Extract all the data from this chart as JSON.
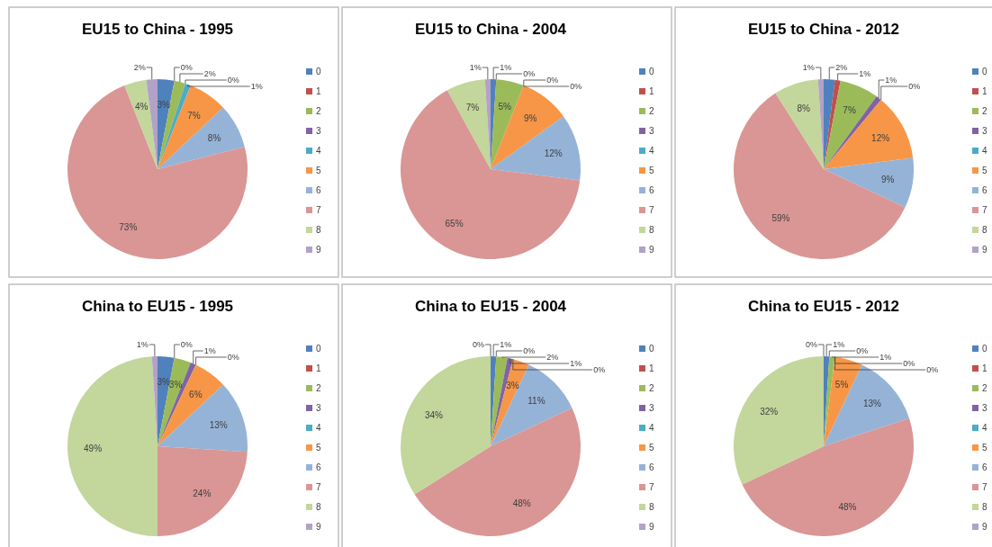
{
  "chart_data": [
    {
      "type": "pie",
      "title": "EU15 to China - 1995",
      "categories": [
        "0",
        "1",
        "2",
        "3",
        "4",
        "5",
        "6",
        "7",
        "8",
        "9"
      ],
      "values": [
        3,
        0,
        2,
        0,
        1,
        7,
        8,
        73,
        4,
        2
      ],
      "value_labels": [
        "3%",
        "0%",
        "2%",
        "0%",
        "1%",
        "7%",
        "8%",
        "73%",
        "4%",
        "2%"
      ],
      "colors": [
        "#4f81bd",
        "#c0504d",
        "#9bbb59",
        "#8064a2",
        "#4bacc6",
        "#f79646",
        "#95b3d7",
        "#d99694",
        "#c3d69b",
        "#b3a2c7"
      ],
      "legend": "right"
    },
    {
      "type": "pie",
      "title": "EU15 to China - 2004",
      "categories": [
        "0",
        "1",
        "2",
        "3",
        "4",
        "5",
        "6",
        "7",
        "8",
        "9"
      ],
      "values": [
        1,
        0,
        5,
        0,
        0,
        9,
        12,
        65,
        7,
        1
      ],
      "value_labels": [
        "1%",
        "0%",
        "5%",
        "0%",
        "0%",
        "9%",
        "12%",
        "65%",
        "7%",
        "1%"
      ],
      "colors": [
        "#4f81bd",
        "#c0504d",
        "#9bbb59",
        "#8064a2",
        "#4bacc6",
        "#f79646",
        "#95b3d7",
        "#d99694",
        "#c3d69b",
        "#b3a2c7"
      ],
      "legend": "right"
    },
    {
      "type": "pie",
      "title": "EU15 to China - 2012",
      "categories": [
        "0",
        "1",
        "2",
        "3",
        "4",
        "5",
        "6",
        "7",
        "8",
        "9"
      ],
      "values": [
        2,
        1,
        7,
        1,
        0,
        12,
        9,
        59,
        8,
        1
      ],
      "value_labels": [
        "2%",
        "1%",
        "7%",
        "1%",
        "0%",
        "12%",
        "9%",
        "59%",
        "8%",
        "1%"
      ],
      "colors": [
        "#4f81bd",
        "#c0504d",
        "#9bbb59",
        "#8064a2",
        "#4bacc6",
        "#f79646",
        "#95b3d7",
        "#d99694",
        "#c3d69b",
        "#b3a2c7"
      ],
      "legend": "right"
    },
    {
      "type": "pie",
      "title": "China to EU15 - 1995",
      "categories": [
        "0",
        "1",
        "2",
        "3",
        "4",
        "5",
        "6",
        "7",
        "8",
        "9"
      ],
      "values": [
        3,
        0,
        3,
        1,
        0,
        6,
        13,
        24,
        49,
        1
      ],
      "value_labels": [
        "3%",
        "0%",
        "3%",
        "1%",
        "0%",
        "6%",
        "13%",
        "24%",
        "49%",
        "1%"
      ],
      "colors": [
        "#4f81bd",
        "#c0504d",
        "#9bbb59",
        "#8064a2",
        "#4bacc6",
        "#f79646",
        "#95b3d7",
        "#d99694",
        "#c3d69b",
        "#b3a2c7"
      ],
      "legend": "right"
    },
    {
      "type": "pie",
      "title": "China to EU15 - 2004",
      "categories": [
        "0",
        "1",
        "2",
        "3",
        "4",
        "5",
        "6",
        "7",
        "8",
        "9"
      ],
      "values": [
        1,
        0,
        2,
        1,
        0,
        3,
        11,
        48,
        34,
        0
      ],
      "value_labels": [
        "1%",
        "0%",
        "2%",
        "1%",
        "0%",
        "3%",
        "11%",
        "48%",
        "34%",
        "0%"
      ],
      "colors": [
        "#4f81bd",
        "#c0504d",
        "#9bbb59",
        "#8064a2",
        "#4bacc6",
        "#f79646",
        "#95b3d7",
        "#d99694",
        "#c3d69b",
        "#b3a2c7"
      ],
      "legend": "right"
    },
    {
      "type": "pie",
      "title": "China to EU15 - 2012",
      "categories": [
        "0",
        "1",
        "2",
        "3",
        "4",
        "5",
        "6",
        "7",
        "8",
        "9"
      ],
      "values": [
        1,
        0,
        1,
        0,
        0,
        5,
        13,
        48,
        32,
        0
      ],
      "value_labels": [
        "1%",
        "0%",
        "1%",
        "0%",
        "0%",
        "5%",
        "13%",
        "48%",
        "32%",
        "0%"
      ],
      "colors": [
        "#4f81bd",
        "#c0504d",
        "#9bbb59",
        "#8064a2",
        "#4bacc6",
        "#f79646",
        "#95b3d7",
        "#d99694",
        "#c3d69b",
        "#b3a2c7"
      ],
      "legend": "right"
    }
  ]
}
